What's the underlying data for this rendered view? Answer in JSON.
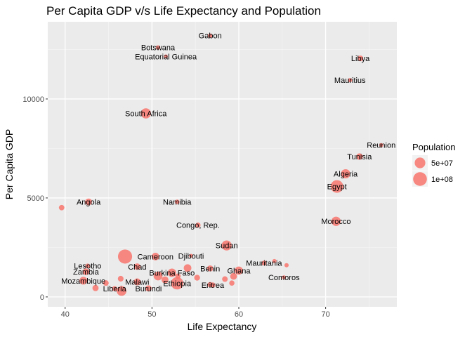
{
  "chart_data": {
    "type": "scatter",
    "title": "Per Capita GDP v/s Life Expectancy and Population",
    "xlabel": "Life Expectancy",
    "ylabel": "Per Capita GDP",
    "xlim": [
      38,
      78.2
    ],
    "ylim": [
      -500,
      13900
    ],
    "x_ticks": [
      40,
      50,
      60,
      70
    ],
    "y_ticks": [
      0,
      5000,
      10000
    ],
    "y_tick_labels": [
      "0",
      "5000",
      "10000"
    ],
    "grid": true,
    "point_color": "#F8766D",
    "legend": {
      "title": "Population",
      "placement": "right",
      "entries": [
        {
          "label": "5e+07",
          "value": 50000000
        },
        {
          "label": "1e+08",
          "value": 100000000
        }
      ]
    },
    "points": [
      {
        "x": 56.7,
        "y": 13200,
        "pop": 1500000,
        "label": "Gabon"
      },
      {
        "x": 50.7,
        "y": 12600,
        "pop": 1700000,
        "label": "Botswana"
      },
      {
        "x": 51.6,
        "y": 12150,
        "pop": 600000,
        "label": "Equatorial Guinea"
      },
      {
        "x": 74.0,
        "y": 12050,
        "pop": 6000000,
        "label": "Libya"
      },
      {
        "x": 72.8,
        "y": 10950,
        "pop": 1250000,
        "label": "Mauritius"
      },
      {
        "x": 49.3,
        "y": 9270,
        "pop": 44000000,
        "label": "South Africa"
      },
      {
        "x": 76.4,
        "y": 7670,
        "pop": 800000,
        "label": "Reunion"
      },
      {
        "x": 73.9,
        "y": 7090,
        "pop": 10300000,
        "label": "Tunisia"
      },
      {
        "x": 72.3,
        "y": 6220,
        "pop": 33300000,
        "label": "Algeria"
      },
      {
        "x": 71.3,
        "y": 5580,
        "pop": 80300000,
        "label": "Egypt"
      },
      {
        "x": 42.7,
        "y": 4800,
        "pop": 12400000,
        "label": "Angola"
      },
      {
        "x": 39.6,
        "y": 4510,
        "pop": 5000000,
        "label": ""
      },
      {
        "x": 52.9,
        "y": 4800,
        "pop": 2100000,
        "label": "Namibia"
      },
      {
        "x": 71.2,
        "y": 3820,
        "pop": 33800000,
        "label": "Morocco"
      },
      {
        "x": 55.3,
        "y": 3630,
        "pop": 3800000,
        "label": "Congo, Rep."
      },
      {
        "x": 58.6,
        "y": 2600,
        "pop": 42300000,
        "label": "Sudan"
      },
      {
        "x": 54.5,
        "y": 2080,
        "pop": 500000,
        "label": "Djibouti"
      },
      {
        "x": 46.9,
        "y": 2040,
        "pop": 107000000,
        "label": ""
      },
      {
        "x": 50.4,
        "y": 2040,
        "pop": 17700000,
        "label": "Cameroon"
      },
      {
        "x": 48.3,
        "y": 1530,
        "pop": 10200000,
        "label": "Chad"
      },
      {
        "x": 42.6,
        "y": 1570,
        "pop": 2000000,
        "label": "Lesotho"
      },
      {
        "x": 42.4,
        "y": 1270,
        "pop": 11700000,
        "label": "Zambia"
      },
      {
        "x": 54.1,
        "y": 1460,
        "pop": 18000000,
        "label": ""
      },
      {
        "x": 52.3,
        "y": 1220,
        "pop": 25000000,
        "label": "Burkina Faso"
      },
      {
        "x": 56.7,
        "y": 1440,
        "pop": 8100000,
        "label": "Benin"
      },
      {
        "x": 60.0,
        "y": 1330,
        "pop": 22900000,
        "label": "Ghana"
      },
      {
        "x": 59.4,
        "y": 1040,
        "pop": 12000000,
        "label": ""
      },
      {
        "x": 62.9,
        "y": 1710,
        "pop": 3000000,
        "label": "Mauritania"
      },
      {
        "x": 64.1,
        "y": 1810,
        "pop": 1000000,
        "label": ""
      },
      {
        "x": 65.5,
        "y": 1600,
        "pop": 1200000,
        "label": ""
      },
      {
        "x": 65.2,
        "y": 990,
        "pop": 700000,
        "label": "Comoros"
      },
      {
        "x": 42.1,
        "y": 820,
        "pop": 19900000,
        "label": "Mozambique"
      },
      {
        "x": 48.3,
        "y": 760,
        "pop": 13300000,
        "label": "Malawi"
      },
      {
        "x": 46.4,
        "y": 920,
        "pop": 6000000,
        "label": ""
      },
      {
        "x": 44.7,
        "y": 700,
        "pop": 5500000,
        "label": ""
      },
      {
        "x": 43.5,
        "y": 450,
        "pop": 8500000,
        "label": ""
      },
      {
        "x": 45.7,
        "y": 420,
        "pop": 3200000,
        "label": "Liberia"
      },
      {
        "x": 52.9,
        "y": 690,
        "pop": 76500000,
        "label": "Ethiopia"
      },
      {
        "x": 46.5,
        "y": 300,
        "pop": 38100000,
        "label": ""
      },
      {
        "x": 49.6,
        "y": 430,
        "pop": 8400000,
        "label": "Burundi"
      },
      {
        "x": 50.7,
        "y": 1060,
        "pop": 29200000,
        "label": ""
      },
      {
        "x": 51.5,
        "y": 860,
        "pop": 12900000,
        "label": ""
      },
      {
        "x": 56.7,
        "y": 620,
        "pop": 4400000,
        "label": ""
      },
      {
        "x": 57.0,
        "y": 600,
        "pop": 4100000,
        "label": "Eritrea"
      },
      {
        "x": 58.4,
        "y": 900,
        "pop": 5700000,
        "label": ""
      },
      {
        "x": 59.2,
        "y": 700,
        "pop": 4200000,
        "label": ""
      },
      {
        "x": 55.2,
        "y": 970,
        "pop": 6600000,
        "label": ""
      },
      {
        "x": 53.0,
        "y": 1050,
        "pop": 4500000,
        "label": ""
      }
    ]
  }
}
